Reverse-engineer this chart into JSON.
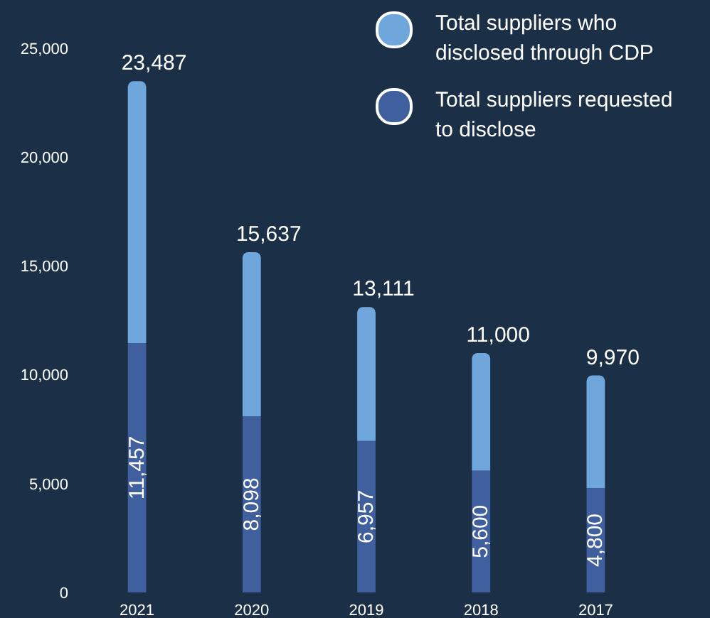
{
  "chart_data": {
    "type": "bar",
    "stacked": true,
    "categories": [
      "2021",
      "2020",
      "2019",
      "2018",
      "2017"
    ],
    "series": [
      {
        "name": "Total suppliers requested to disclose",
        "color": "#3f5f9e",
        "values": [
          11457,
          8098,
          6957,
          5600,
          4800
        ],
        "value_labels": [
          "11,457",
          "8,098",
          "6,957",
          "5,600",
          "4,800"
        ]
      },
      {
        "name": "Total suppliers who disclosed through CDP",
        "color": "#6fa7dc",
        "values": [
          12030,
          7539,
          6154,
          5400,
          5170
        ]
      }
    ],
    "totals": [
      "23,487",
      "15,637",
      "13,111",
      "11,000",
      "9,970"
    ],
    "ylim": [
      0,
      25000
    ],
    "yticks": [
      0,
      {
        "value": 5000,
        "label": "5,000"
      },
      {
        "value": 10000,
        "label": "10,000"
      },
      {
        "value": 15000,
        "label": "15,000"
      },
      {
        "value": 20000,
        "label": "20,000"
      },
      {
        "value": 25000,
        "label": "25,000"
      }
    ],
    "legend": "top right"
  }
}
